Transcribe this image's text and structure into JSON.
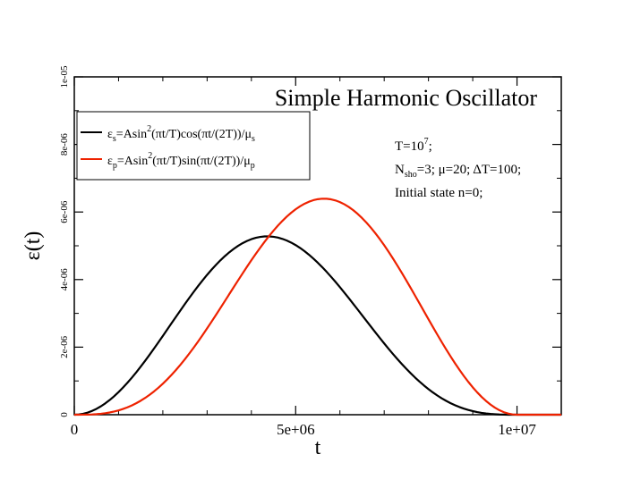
{
  "chart_data": {
    "type": "line",
    "title": "Simple Harmonic Oscillator",
    "xlabel": "t",
    "ylabel_main": "ε",
    "ylabel_paren": "(t)",
    "xlim": [
      0,
      11000000
    ],
    "ylim": [
      0,
      1e-05
    ],
    "x_ticks": [
      {
        "value": 0,
        "label": "0"
      },
      {
        "value": 5000000,
        "label": "5e+06"
      },
      {
        "value": 10000000,
        "label": "1e+07"
      }
    ],
    "y_ticks": [
      {
        "value": 0,
        "label": "0"
      },
      {
        "value": 2e-06,
        "label": "2e-06"
      },
      {
        "value": 4e-06,
        "label": "4e-06"
      },
      {
        "value": 6e-06,
        "label": "6e-06"
      },
      {
        "value": 8e-06,
        "label": "8e-06"
      },
      {
        "value": 1e-05,
        "label": "1e-05"
      }
    ],
    "model": {
      "T": 10000000,
      "x_max": 11000000,
      "samples": 111
    },
    "series": [
      {
        "name": "eps_s",
        "color": "#000000",
        "amplitude": 7.1e-06,
        "kind": "cos",
        "legend": {
          "main": "ε",
          "sub": "s",
          "formula": "=Asin",
          "sup": "2",
          "rest": "(πt/T)cos(πt/(2T))/μ",
          "tail_sub": "s"
        }
      },
      {
        "name": "eps_p",
        "color": "#ee2200",
        "amplitude": 8.6e-06,
        "kind": "sin",
        "legend": {
          "main": "ε",
          "sub": "p",
          "formula": "=Asin",
          "sup": "2",
          "rest": "(πt/T)sin(πt/(2T))/μ",
          "tail_sub": "p"
        }
      }
    ],
    "annotations": {
      "line1": {
        "text": "T=10",
        "sup": "7",
        "tail": ";"
      },
      "line2": {
        "text": "N",
        "sub": "sho",
        "tail": "=3;  μ=20; ΔT=100;"
      },
      "line3": {
        "text": "Initial state n=0;"
      }
    }
  }
}
